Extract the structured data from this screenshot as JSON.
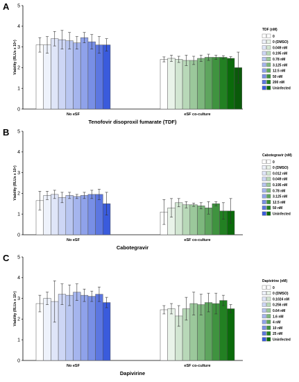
{
  "chart_data": [
    {
      "type": "bar",
      "panel": "A",
      "xlabel": "Tenofovir disoproxil fumarate (TDF)",
      "ylabel": "Viability (RLUs x 10⁵)",
      "ylim": [
        0,
        5
      ],
      "yticks": [
        "0",
        "1",
        "2",
        "3",
        "4",
        "5"
      ],
      "groups": [
        "No eSF",
        "eSF co-culture"
      ],
      "legend_title": "TDF (nM)",
      "legend_position": "right",
      "series": [
        {
          "name": "0",
          "color": "#ffffff",
          "values": [
            3.1,
            2.4
          ],
          "errors": [
            0.35,
            0.12
          ]
        },
        {
          "name": "0 (DMSO)",
          "color": "#eef2fb",
          "values": [
            3.1,
            2.45
          ],
          "errors": [
            0.4,
            0.15
          ]
        },
        {
          "name": "0.049 nM",
          "color": "#dfe5f8",
          "values": [
            3.4,
            2.4
          ],
          "errors": [
            0.35,
            0.15
          ]
        },
        {
          "name": "0.195 nM",
          "color": "#cdd6f5",
          "values": [
            3.35,
            2.35
          ],
          "errors": [
            0.45,
            0.25
          ]
        },
        {
          "name": "0.78 nM",
          "color": "#b9c6f1",
          "values": [
            3.3,
            2.35
          ],
          "errors": [
            0.4,
            0.2
          ]
        },
        {
          "name": "3.125 nM",
          "color": "#a5b5ee",
          "values": [
            3.2,
            2.45
          ],
          "errors": [
            0.3,
            0.15
          ]
        },
        {
          "name": "12.5 nM",
          "color": "#8fa2ea",
          "values": [
            3.45,
            2.5
          ],
          "errors": [
            0.25,
            0.15
          ]
        },
        {
          "name": "50 nM",
          "color": "#788fe6",
          "values": [
            3.25,
            2.5
          ],
          "errors": [
            0.35,
            0.1
          ]
        },
        {
          "name": "200 nM",
          "color": "#5c77e1",
          "values": [
            3.1,
            2.5
          ],
          "errors": [
            0.4,
            0.08
          ]
        },
        {
          "name": "Uninfected",
          "color": "#3a5bdc",
          "values": [
            3.1,
            2.45
          ],
          "errors": [
            0.3,
            0.08
          ]
        }
      ],
      "eSF_colors": [
        "#ffffff",
        "#e9f3e9",
        "#d2e6d2",
        "#b8d8b8",
        "#9bc89b",
        "#7db77d",
        "#5ea55e",
        "#3f933f",
        "#228022",
        "#0b6a0b"
      ],
      "extra": {
        "group": 1,
        "values": [
          2.0
        ],
        "errors": [
          0.75
        ]
      }
    },
    {
      "type": "bar",
      "panel": "B",
      "xlabel": "Cabotegravir",
      "ylabel": "Viability (RLUs x 10⁵)",
      "ylim": [
        0,
        5
      ],
      "yticks": [
        "0",
        "1",
        "2",
        "3",
        "4",
        "5"
      ],
      "groups": [
        "No eSF",
        "eSF co-culture"
      ],
      "legend_title": "Cabotegravir (nM)",
      "legend_position": "right",
      "series": [
        {
          "name": "0",
          "color": "#ffffff",
          "values": [
            1.65,
            1.1
          ],
          "errors": [
            0.45,
            0.6
          ]
        },
        {
          "name": "0 (DMSO)",
          "color": "#eef2fb",
          "values": [
            1.9,
            1.3
          ],
          "errors": [
            0.2,
            0.45
          ]
        },
        {
          "name": "0.012 nM",
          "color": "#dfe5f8",
          "values": [
            1.95,
            1.55
          ],
          "errors": [
            0.2,
            0.2
          ]
        },
        {
          "name": "0.049 nM",
          "color": "#cdd6f5",
          "values": [
            1.8,
            1.45
          ],
          "errors": [
            0.25,
            0.15
          ]
        },
        {
          "name": "0.195 nM",
          "color": "#b9c6f1",
          "values": [
            1.9,
            1.45
          ],
          "errors": [
            0.15,
            0.08
          ]
        },
        {
          "name": "0.78 nM",
          "color": "#a5b5ee",
          "values": [
            1.85,
            1.4
          ],
          "errors": [
            0.1,
            0.15
          ]
        },
        {
          "name": "3.125 nM",
          "color": "#8fa2ea",
          "values": [
            1.9,
            1.3
          ],
          "errors": [
            0.15,
            0.3
          ]
        },
        {
          "name": "12.5 nM",
          "color": "#788fe6",
          "values": [
            1.95,
            1.5
          ],
          "errors": [
            0.2,
            0.1
          ]
        },
        {
          "name": "50 nM",
          "color": "#5c77e1",
          "values": [
            1.95,
            1.15
          ],
          "errors": [
            0.25,
            0.4
          ]
        },
        {
          "name": "Uninfected",
          "color": "#3a5bdc",
          "values": [
            1.5,
            1.15
          ],
          "errors": [
            0.55,
            0.6
          ]
        }
      ],
      "eSF_colors": [
        "#ffffff",
        "#e9f3e9",
        "#d2e6d2",
        "#b8d8b8",
        "#9bc89b",
        "#7db77d",
        "#5ea55e",
        "#3f933f",
        "#228022",
        "#0b6a0b"
      ]
    },
    {
      "type": "bar",
      "panel": "C",
      "xlabel": "Dapivirine",
      "ylabel": "Viability (RLUs x 10⁵)",
      "ylim": [
        0,
        5
      ],
      "yticks": [
        "0",
        "1",
        "2",
        "3",
        "4",
        "5"
      ],
      "groups": [
        "No eSF",
        "eSF co-culture"
      ],
      "legend_title": "Dapivirine (nM)",
      "legend_position": "right",
      "series": [
        {
          "name": "0",
          "color": "#ffffff",
          "values": [
            2.75,
            2.45
          ],
          "errors": [
            0.4,
            0.2
          ]
        },
        {
          "name": "0 (DMSO)",
          "color": "#eef2fb",
          "values": [
            3.0,
            2.5
          ],
          "errors": [
            0.3,
            0.25
          ]
        },
        {
          "name": "0.1024 nM",
          "color": "#dfe5f8",
          "values": [
            2.85,
            2.15
          ],
          "errors": [
            1.0,
            0.5
          ]
        },
        {
          "name": "0.256 nM",
          "color": "#cdd6f5",
          "values": [
            3.2,
            2.5
          ],
          "errors": [
            0.5,
            0.55
          ]
        },
        {
          "name": "0.64 nM",
          "color": "#b9c6f1",
          "values": [
            3.15,
            2.75
          ],
          "errors": [
            0.5,
            0.55
          ]
        },
        {
          "name": "1.6 nM",
          "color": "#a5b5ee",
          "values": [
            3.3,
            2.7
          ],
          "errors": [
            0.4,
            0.5
          ]
        },
        {
          "name": "4 nM",
          "color": "#8fa2ea",
          "values": [
            3.15,
            2.8
          ],
          "errors": [
            0.3,
            0.45
          ]
        },
        {
          "name": "10 nM",
          "color": "#788fe6",
          "values": [
            3.1,
            2.75
          ],
          "errors": [
            0.25,
            0.5
          ]
        },
        {
          "name": "25 nM",
          "color": "#5c77e1",
          "values": [
            3.2,
            2.9
          ],
          "errors": [
            0.35,
            0.25
          ]
        },
        {
          "name": "Uninfected",
          "color": "#3a5bdc",
          "values": [
            2.8,
            2.5
          ],
          "errors": [
            0.25,
            0.2
          ]
        }
      ],
      "eSF_colors": [
        "#ffffff",
        "#e9f3e9",
        "#d2e6d2",
        "#b8d8b8",
        "#9bc89b",
        "#7db77d",
        "#5ea55e",
        "#3f933f",
        "#228022",
        "#0b6a0b"
      ]
    }
  ]
}
